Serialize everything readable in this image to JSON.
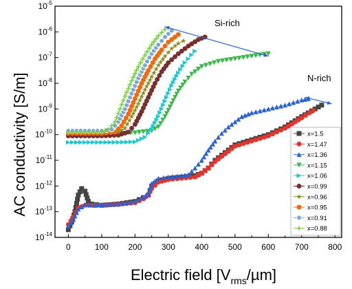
{
  "chart_data": {
    "type": "scatter",
    "xlabel_main": "Electric field [V",
    "xlabel_sub": "rms",
    "xlabel_tail": "/µm]",
    "ylabel": "AC conductivity [S/m]",
    "xlim": [
      -40,
      820
    ],
    "ylim_log10": [
      -14,
      -5
    ],
    "y_scale": "log",
    "x_ticks": [
      0,
      100,
      200,
      300,
      400,
      500,
      600,
      700,
      800
    ],
    "y_tick_exponents": [
      -14,
      -13,
      -12,
      -11,
      -10,
      -9,
      -8,
      -7,
      -6,
      -5
    ],
    "legend_position": "bottom-right",
    "annotations": [
      {
        "text": "Si-rich",
        "arrow_from": [
          290,
          -5.8
        ],
        "arrow_to": [
          600,
          -6.95
        ]
      },
      {
        "text": "N-rich",
        "arrow_from": [
          710,
          -8.55
        ],
        "arrow_to": [
          790,
          -8.8
        ]
      }
    ],
    "series": [
      {
        "name": "x=1.5",
        "color": "#444444",
        "marker": "square",
        "points": [
          [
            0,
            -13.7
          ],
          [
            10,
            -13.4
          ],
          [
            20,
            -13.0
          ],
          [
            30,
            -12.35
          ],
          [
            40,
            -12.1
          ],
          [
            50,
            -12.2
          ],
          [
            60,
            -12.6
          ],
          [
            70,
            -12.7
          ],
          [
            100,
            -12.75
          ],
          [
            150,
            -12.7
          ],
          [
            200,
            -12.6
          ],
          [
            225,
            -12.45
          ],
          [
            240,
            -12.35
          ],
          [
            250,
            -12.0
          ],
          [
            270,
            -11.8
          ],
          [
            300,
            -11.7
          ],
          [
            340,
            -11.65
          ],
          [
            380,
            -11.6
          ],
          [
            400,
            -11.5
          ],
          [
            420,
            -11.3
          ],
          [
            440,
            -11.0
          ],
          [
            460,
            -10.8
          ],
          [
            480,
            -10.6
          ],
          [
            500,
            -10.4
          ],
          [
            550,
            -10.2
          ],
          [
            600,
            -10.0
          ],
          [
            650,
            -9.7
          ],
          [
            700,
            -9.3
          ],
          [
            740,
            -9.0
          ],
          [
            760,
            -8.85
          ]
        ]
      },
      {
        "name": "x=1.47",
        "color": "#e8322c",
        "marker": "circle",
        "points": [
          [
            0,
            -13.5
          ],
          [
            15,
            -13.2
          ],
          [
            30,
            -12.85
          ],
          [
            50,
            -12.75
          ],
          [
            70,
            -12.75
          ],
          [
            100,
            -12.75
          ],
          [
            150,
            -12.72
          ],
          [
            200,
            -12.65
          ],
          [
            225,
            -12.5
          ],
          [
            240,
            -12.35
          ],
          [
            250,
            -12.1
          ],
          [
            270,
            -11.85
          ],
          [
            300,
            -11.75
          ],
          [
            340,
            -11.7
          ],
          [
            380,
            -11.65
          ],
          [
            400,
            -11.5
          ],
          [
            420,
            -11.3
          ],
          [
            440,
            -11.05
          ],
          [
            460,
            -10.85
          ],
          [
            480,
            -10.65
          ],
          [
            500,
            -10.45
          ],
          [
            550,
            -10.25
          ],
          [
            600,
            -10.05
          ],
          [
            650,
            -9.75
          ],
          [
            700,
            -9.35
          ],
          [
            735,
            -9.05
          ]
        ]
      },
      {
        "name": "x=1.36",
        "color": "#2a62d6",
        "marker": "triangle",
        "points": [
          [
            0,
            -13.55
          ],
          [
            15,
            -13.3
          ],
          [
            30,
            -12.9
          ],
          [
            50,
            -12.72
          ],
          [
            80,
            -12.75
          ],
          [
            100,
            -12.72
          ],
          [
            150,
            -12.7
          ],
          [
            200,
            -12.6
          ],
          [
            225,
            -12.45
          ],
          [
            240,
            -12.3
          ],
          [
            250,
            -11.9
          ],
          [
            270,
            -11.7
          ],
          [
            300,
            -11.65
          ],
          [
            340,
            -11.6
          ],
          [
            360,
            -11.55
          ],
          [
            380,
            -11.3
          ],
          [
            400,
            -11.0
          ],
          [
            420,
            -10.6
          ],
          [
            440,
            -10.25
          ],
          [
            460,
            -9.95
          ],
          [
            480,
            -9.7
          ],
          [
            500,
            -9.5
          ],
          [
            520,
            -9.3
          ],
          [
            550,
            -9.15
          ],
          [
            600,
            -9.0
          ],
          [
            650,
            -8.85
          ],
          [
            700,
            -8.65
          ],
          [
            720,
            -8.6
          ]
        ]
      },
      {
        "name": "x=1.15",
        "color": "#3cb84a",
        "marker": "triangle-down",
        "points": [
          [
            0,
            -9.9
          ],
          [
            50,
            -9.95
          ],
          [
            100,
            -9.95
          ],
          [
            150,
            -9.95
          ],
          [
            200,
            -9.93
          ],
          [
            250,
            -9.85
          ],
          [
            270,
            -9.7
          ],
          [
            290,
            -9.3
          ],
          [
            310,
            -8.8
          ],
          [
            330,
            -8.3
          ],
          [
            350,
            -7.95
          ],
          [
            370,
            -7.65
          ],
          [
            400,
            -7.35
          ],
          [
            450,
            -7.15
          ],
          [
            500,
            -7.05
          ],
          [
            550,
            -6.95
          ],
          [
            600,
            -6.85
          ]
        ]
      },
      {
        "name": "x=1.06",
        "color": "#1ec8cf",
        "marker": "triangle-right",
        "points": [
          [
            0,
            -10.3
          ],
          [
            50,
            -10.3
          ],
          [
            100,
            -10.3
          ],
          [
            150,
            -10.3
          ],
          [
            200,
            -10.28
          ],
          [
            230,
            -10.1
          ],
          [
            250,
            -9.8
          ],
          [
            270,
            -9.3
          ],
          [
            290,
            -8.7
          ],
          [
            310,
            -8.1
          ],
          [
            330,
            -7.6
          ],
          [
            350,
            -7.2
          ],
          [
            370,
            -6.9
          ],
          [
            380,
            -6.75
          ]
        ]
      },
      {
        "name": "x=0.99",
        "color": "#7a2f2f",
        "marker": "circle",
        "points": [
          [
            0,
            -10.05
          ],
          [
            50,
            -10.05
          ],
          [
            100,
            -10.05
          ],
          [
            150,
            -10.02
          ],
          [
            180,
            -9.9
          ],
          [
            200,
            -9.6
          ],
          [
            220,
            -9.1
          ],
          [
            240,
            -8.55
          ],
          [
            260,
            -8.0
          ],
          [
            280,
            -7.55
          ],
          [
            300,
            -7.2
          ],
          [
            330,
            -6.85
          ],
          [
            360,
            -6.55
          ],
          [
            390,
            -6.3
          ],
          [
            410,
            -6.2
          ]
        ]
      },
      {
        "name": "x=0.96",
        "color": "#8c8c1c",
        "marker": "star",
        "points": [
          [
            0,
            -9.95
          ],
          [
            50,
            -9.95
          ],
          [
            100,
            -9.95
          ],
          [
            150,
            -9.9
          ],
          [
            170,
            -9.75
          ],
          [
            190,
            -9.3
          ],
          [
            210,
            -8.8
          ],
          [
            230,
            -8.25
          ],
          [
            250,
            -7.75
          ],
          [
            270,
            -7.3
          ],
          [
            290,
            -6.95
          ],
          [
            310,
            -6.65
          ],
          [
            330,
            -6.45
          ],
          [
            345,
            -6.35
          ]
        ]
      },
      {
        "name": "x=0.95",
        "color": "#f26a10",
        "marker": "circle",
        "points": [
          [
            0,
            -9.95
          ],
          [
            50,
            -9.95
          ],
          [
            100,
            -9.95
          ],
          [
            140,
            -9.9
          ],
          [
            160,
            -9.65
          ],
          [
            180,
            -9.2
          ],
          [
            200,
            -8.6
          ],
          [
            220,
            -8.0
          ],
          [
            240,
            -7.5
          ],
          [
            260,
            -7.05
          ],
          [
            280,
            -6.7
          ],
          [
            300,
            -6.4
          ],
          [
            320,
            -6.2
          ],
          [
            330,
            -6.1
          ]
        ]
      },
      {
        "name": "x=0.91",
        "color": "#7aa6d8",
        "marker": "circle-dot",
        "points": [
          [
            0,
            -9.85
          ],
          [
            50,
            -9.85
          ],
          [
            100,
            -9.85
          ],
          [
            130,
            -9.8
          ],
          [
            150,
            -9.5
          ],
          [
            170,
            -9.0
          ],
          [
            190,
            -8.4
          ],
          [
            210,
            -7.8
          ],
          [
            230,
            -7.3
          ],
          [
            250,
            -6.85
          ],
          [
            270,
            -6.5
          ],
          [
            290,
            -6.2
          ],
          [
            310,
            -5.95
          ]
        ]
      },
      {
        "name": "x=0.88",
        "color": "#6fcf3a",
        "marker": "plus",
        "points": [
          [
            0,
            -9.9
          ],
          [
            50,
            -9.9
          ],
          [
            100,
            -9.9
          ],
          [
            120,
            -9.8
          ],
          [
            140,
            -9.5
          ],
          [
            155,
            -9.0
          ],
          [
            170,
            -8.5
          ],
          [
            190,
            -7.9
          ],
          [
            210,
            -7.35
          ],
          [
            230,
            -6.9
          ],
          [
            250,
            -6.5
          ],
          [
            270,
            -6.15
          ],
          [
            290,
            -5.9
          ]
        ]
      }
    ],
    "colors": {
      "arrow": "#2a62d6",
      "frame": "#000000"
    }
  }
}
